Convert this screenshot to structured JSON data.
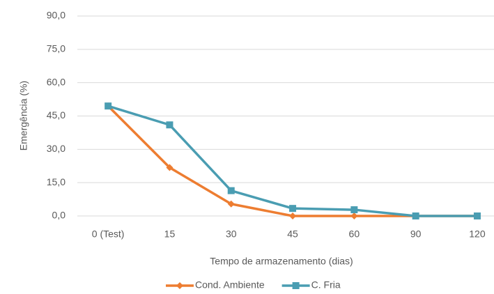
{
  "chart_data": {
    "type": "line",
    "x_label": "Tempo de armazenamento (dias)",
    "y_label": "Emergência (%)",
    "categories": [
      "0 (Test)",
      "15",
      "30",
      "45",
      "60",
      "90",
      "120"
    ],
    "series": [
      {
        "name": "Cond. Ambiente",
        "color": "#ed7d31",
        "marker": "diamond",
        "values": [
          49.5,
          21.8,
          5.4,
          0,
          0,
          0,
          0
        ]
      },
      {
        "name": "C. Fria",
        "color": "#4a9db2",
        "marker": "square",
        "values": [
          49.5,
          41,
          11.4,
          3.4,
          2.8,
          0,
          0
        ]
      }
    ],
    "ylim": [
      0,
      90
    ],
    "yticks": [
      {
        "value": 0,
        "label": "0,0"
      },
      {
        "value": 15,
        "label": "15,0"
      },
      {
        "value": 30,
        "label": "30,0"
      },
      {
        "value": 45,
        "label": "45,0"
      },
      {
        "value": 60,
        "label": "60,0"
      },
      {
        "value": 75,
        "label": "75,0"
      },
      {
        "value": 90,
        "label": "90,0"
      }
    ],
    "grid": true,
    "legend": "bottom"
  }
}
